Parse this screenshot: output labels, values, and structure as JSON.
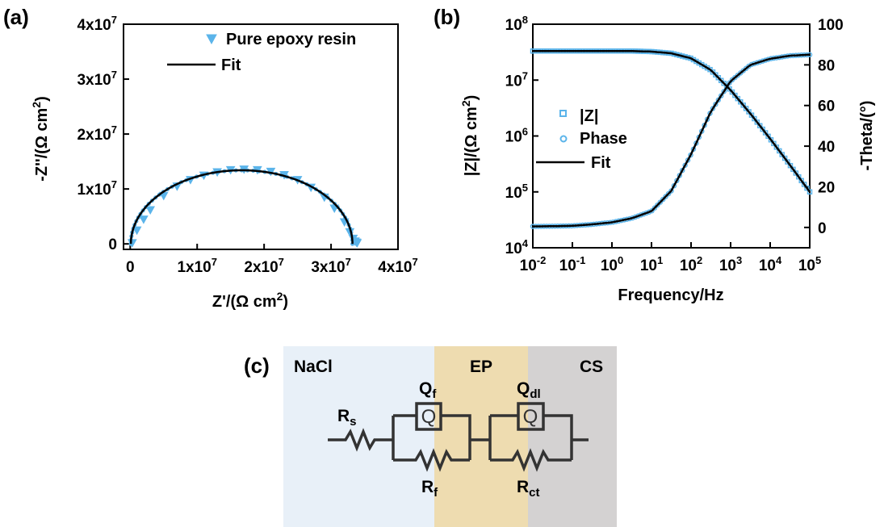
{
  "panel_labels": {
    "a": "(a)",
    "b": "(b)",
    "c": "(c)"
  },
  "colors": {
    "data": "#5bb4ea",
    "fit": "#000000",
    "nacl_bg": "#e8f0f8",
    "ep_bg": "#eedcb0",
    "cs_bg": "#d4d2d2",
    "circuit": "#333333"
  },
  "chart_data": [
    {
      "type": "scatter",
      "panel": "(a)",
      "x_unit_exp": "7",
      "y_unit_exp": "7",
      "xlabel": {
        "main": "Z'/(Ω cm",
        "sup": "2",
        "end": ")"
      },
      "ylabel": {
        "main": "-Z''/(Ω cm",
        "sup": "2",
        "end": ")"
      },
      "xlim": [
        -0.1,
        4.0
      ],
      "ylim": [
        -0.1,
        4.0
      ],
      "xticks": [
        {
          "value": 0,
          "base": "0",
          "exp": ""
        },
        {
          "value": 1,
          "base": "1x10",
          "exp": "7"
        },
        {
          "value": 2,
          "base": "2x10",
          "exp": "7"
        },
        {
          "value": 3,
          "base": "3x10",
          "exp": "7"
        },
        {
          "value": 4,
          "base": "4x10",
          "exp": "7"
        }
      ],
      "yticks": [
        {
          "value": 0,
          "base": "0",
          "exp": ""
        },
        {
          "value": 1,
          "base": "1x10",
          "exp": "7"
        },
        {
          "value": 2,
          "base": "2x10",
          "exp": "7"
        },
        {
          "value": 3,
          "base": "3x10",
          "exp": "7"
        },
        {
          "value": 4,
          "base": "4x10",
          "exp": "7"
        }
      ],
      "legend": [
        {
          "label": "Pure epoxy resin",
          "marker": "triangle-down"
        },
        {
          "label": "Fit",
          "marker": "line"
        }
      ],
      "legend_position": "top-right",
      "series": [
        {
          "name": "Pure epoxy resin",
          "marker": "triangle-down",
          "x": [
            0.03,
            0.1,
            0.2,
            0.3,
            0.5,
            0.7,
            0.9,
            1.1,
            1.3,
            1.5,
            1.7,
            1.9,
            2.1,
            2.3,
            2.5,
            2.7,
            2.9,
            3.05,
            3.2,
            3.28,
            3.33,
            3.36,
            3.38,
            3.39
          ],
          "y": [
            0.02,
            0.25,
            0.45,
            0.62,
            0.88,
            1.05,
            1.17,
            1.25,
            1.31,
            1.35,
            1.36,
            1.35,
            1.32,
            1.26,
            1.17,
            1.03,
            0.85,
            0.65,
            0.4,
            0.22,
            0.1,
            0.05,
            0.03,
            0.02
          ]
        },
        {
          "name": "Fit",
          "marker": "line",
          "center": 1.665,
          "radius": 1.655,
          "depression_factor": 0.81
        }
      ]
    },
    {
      "type": "line",
      "panel": "(b)",
      "xlabel": "Frequency/Hz",
      "ylabel_left": {
        "main": "|Z|/(Ω cm",
        "sup": "2",
        "end": ")"
      },
      "ylabel_right": "-Theta/(°)",
      "x_log_range": [
        -2,
        5
      ],
      "y_left_log_range": [
        4,
        8
      ],
      "y_right_range": [
        -10,
        100
      ],
      "xticks": [
        {
          "base": "10",
          "exp": "-2"
        },
        {
          "base": "10",
          "exp": "-1"
        },
        {
          "base": "10",
          "exp": "0"
        },
        {
          "base": "10",
          "exp": "1"
        },
        {
          "base": "10",
          "exp": "2"
        },
        {
          "base": "10",
          "exp": "3"
        },
        {
          "base": "10",
          "exp": "4"
        },
        {
          "base": "10",
          "exp": "5"
        }
      ],
      "yticks_left": [
        {
          "base": "10",
          "exp": "4"
        },
        {
          "base": "10",
          "exp": "5"
        },
        {
          "base": "10",
          "exp": "6"
        },
        {
          "base": "10",
          "exp": "7"
        },
        {
          "base": "10",
          "exp": "8"
        }
      ],
      "yticks_right": [
        "0",
        "20",
        "40",
        "60",
        "80",
        "100"
      ],
      "legend": [
        {
          "label": "|Z|",
          "marker": "square"
        },
        {
          "label": "Phase",
          "marker": "circle"
        },
        {
          "label": "Fit",
          "marker": "line"
        }
      ],
      "legend_position": "left-middle",
      "series": [
        {
          "name": "|Z|",
          "marker": "square",
          "logf": [
            -2.0,
            -1.5,
            -1.0,
            -0.5,
            0.0,
            0.5,
            1.0,
            1.5,
            2.0,
            2.5,
            3.0,
            3.5,
            4.0,
            4.5,
            5.0
          ],
          "log_z": [
            7.52,
            7.52,
            7.52,
            7.52,
            7.52,
            7.52,
            7.51,
            7.48,
            7.39,
            7.18,
            6.82,
            6.4,
            5.95,
            5.48,
            5.0
          ]
        },
        {
          "name": "Phase",
          "marker": "circle",
          "logf": [
            -2.0,
            -1.5,
            -1.0,
            -0.5,
            0.0,
            0.5,
            1.0,
            1.5,
            2.0,
            2.5,
            3.0,
            3.5,
            4.0,
            4.5,
            5.0
          ],
          "theta": [
            0.5,
            0.6,
            0.8,
            1.5,
            2.5,
            4.5,
            8.0,
            18.0,
            36.0,
            57.0,
            72.0,
            80.0,
            83.0,
            84.5,
            85.0
          ]
        }
      ]
    }
  ],
  "circuit": {
    "regions": [
      "NaCl",
      "EP",
      "CS"
    ],
    "rs": {
      "main": "R",
      "sub": "s"
    },
    "qf": {
      "main": "Q",
      "sub": "f"
    },
    "qdl": {
      "main": "Q",
      "sub": "dl"
    },
    "rf": {
      "main": "R",
      "sub": "f"
    },
    "rct": {
      "main": "R",
      "sub": "ct"
    },
    "q_symbol": "Q"
  }
}
